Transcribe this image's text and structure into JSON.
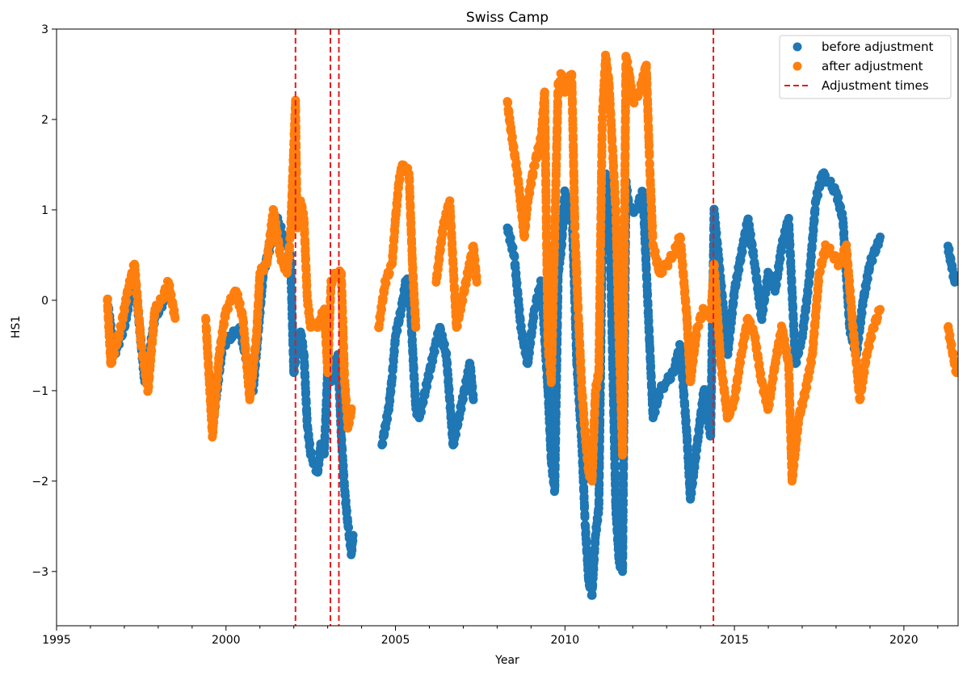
{
  "chart_data": {
    "type": "scatter",
    "title": "Swiss Camp",
    "xlabel": "Year",
    "ylabel": "HS1",
    "xlim": [
      1995,
      2021.6
    ],
    "ylim": [
      -3.6,
      3.0
    ],
    "xticks": [
      1995,
      2000,
      2005,
      2010,
      2015,
      2020
    ],
    "xtick_labels": [
      "1995",
      "2000",
      "2005",
      "2010",
      "2015",
      "2020"
    ],
    "yticks": [
      -3,
      -2,
      -1,
      0,
      1,
      2,
      3
    ],
    "ytick_labels": [
      "−3",
      "−2",
      "−1",
      "0",
      "1",
      "2",
      "3"
    ],
    "legend_position": "top-right",
    "grid": false,
    "series": [
      {
        "name": "before adjustment",
        "color": "#1f77b4",
        "marker": "circle",
        "points": [
          [
            1996.5,
            0.0
          ],
          [
            1996.7,
            -0.6
          ],
          [
            1997.0,
            -0.3
          ],
          [
            1997.3,
            0.3
          ],
          [
            1997.6,
            -0.9
          ],
          [
            1997.9,
            -0.2
          ],
          [
            1998.3,
            0.1
          ],
          [
            1999.6,
            -1.4
          ],
          [
            1999.9,
            -0.5
          ],
          [
            2000.4,
            -0.3
          ],
          [
            2000.8,
            -1.0
          ],
          [
            2001.1,
            0.3
          ],
          [
            2001.5,
            0.9
          ],
          [
            2001.9,
            0.5
          ],
          [
            2002.0,
            -0.8
          ],
          [
            2002.1,
            -0.5
          ],
          [
            2002.2,
            -0.35
          ],
          [
            2002.3,
            -0.6
          ],
          [
            2002.4,
            -1.4
          ],
          [
            2002.5,
            -1.7
          ],
          [
            2002.6,
            -1.8
          ],
          [
            2002.7,
            -1.9
          ],
          [
            2002.8,
            -1.6
          ],
          [
            2002.9,
            -1.7
          ],
          [
            2003.0,
            -0.75
          ],
          [
            2003.1,
            -0.9
          ],
          [
            2003.2,
            -0.7
          ],
          [
            2003.3,
            -0.6
          ],
          [
            2003.4,
            -1.5
          ],
          [
            2003.5,
            -2.1
          ],
          [
            2003.6,
            -2.5
          ],
          [
            2003.7,
            -2.8
          ],
          [
            2003.75,
            -2.6
          ],
          [
            2004.6,
            -1.6
          ],
          [
            2004.8,
            -1.2
          ],
          [
            2004.9,
            -0.85
          ],
          [
            2005.0,
            -0.4
          ],
          [
            2005.2,
            -0.05
          ],
          [
            2005.3,
            0.2
          ],
          [
            2005.4,
            0.2
          ],
          [
            2005.5,
            -0.5
          ],
          [
            2005.6,
            -1.2
          ],
          [
            2005.7,
            -1.3
          ],
          [
            2006.3,
            -0.3
          ],
          [
            2006.5,
            -0.6
          ],
          [
            2006.7,
            -1.6
          ],
          [
            2007.2,
            -0.7
          ],
          [
            2007.3,
            -1.1
          ],
          [
            2008.3,
            0.8
          ],
          [
            2008.5,
            0.5
          ],
          [
            2008.7,
            -0.3
          ],
          [
            2008.9,
            -0.7
          ],
          [
            2009.1,
            -0.1
          ],
          [
            2009.3,
            0.2
          ],
          [
            2009.5,
            -1.0
          ],
          [
            2009.6,
            -1.8
          ],
          [
            2009.7,
            -2.1
          ],
          [
            2009.8,
            0.3
          ],
          [
            2009.9,
            0.6
          ],
          [
            2010.0,
            1.2
          ],
          [
            2010.1,
            0.9
          ],
          [
            2010.2,
            1.1
          ],
          [
            2010.35,
            -0.7
          ],
          [
            2010.5,
            -1.6
          ],
          [
            2010.6,
            -2.5
          ],
          [
            2010.7,
            -3.1
          ],
          [
            2010.8,
            -3.25
          ],
          [
            2010.9,
            -2.6
          ],
          [
            2011.0,
            -2.3
          ],
          [
            2011.1,
            0.7
          ],
          [
            2011.2,
            1.4
          ],
          [
            2011.3,
            1.2
          ],
          [
            2011.5,
            -2.3
          ],
          [
            2011.6,
            -2.9
          ],
          [
            2011.7,
            -3.0
          ],
          [
            2011.8,
            1.3
          ],
          [
            2011.9,
            1.0
          ],
          [
            2012.1,
            1.0
          ],
          [
            2012.3,
            1.2
          ],
          [
            2012.5,
            -0.5
          ],
          [
            2012.6,
            -1.3
          ],
          [
            2012.8,
            -1.0
          ],
          [
            2013.0,
            -0.9
          ],
          [
            2013.2,
            -0.8
          ],
          [
            2013.4,
            -0.5
          ],
          [
            2013.6,
            -1.5
          ],
          [
            2013.7,
            -2.2
          ],
          [
            2013.9,
            -1.6
          ],
          [
            2014.1,
            -1.0
          ],
          [
            2014.3,
            -1.5
          ],
          [
            2014.4,
            1.0
          ],
          [
            2014.6,
            0.2
          ],
          [
            2014.8,
            -0.6
          ],
          [
            2015.0,
            0.1
          ],
          [
            2015.2,
            0.5
          ],
          [
            2015.4,
            0.9
          ],
          [
            2015.6,
            0.4
          ],
          [
            2015.8,
            -0.2
          ],
          [
            2016.0,
            0.3
          ],
          [
            2016.2,
            0.1
          ],
          [
            2016.4,
            0.6
          ],
          [
            2016.6,
            0.9
          ],
          [
            2016.8,
            -0.7
          ],
          [
            2017.0,
            -0.4
          ],
          [
            2017.2,
            0.2
          ],
          [
            2017.4,
            1.1
          ],
          [
            2017.6,
            1.4
          ],
          [
            2017.8,
            1.3
          ],
          [
            2018.0,
            1.2
          ],
          [
            2018.2,
            0.9
          ],
          [
            2018.4,
            -0.3
          ],
          [
            2018.6,
            -0.6
          ],
          [
            2018.8,
            0.0
          ],
          [
            2019.0,
            0.4
          ],
          [
            2019.2,
            0.6
          ],
          [
            2019.3,
            0.7
          ],
          [
            2021.3,
            0.6
          ],
          [
            2021.4,
            0.4
          ],
          [
            2021.5,
            0.2
          ]
        ]
      },
      {
        "name": "after adjustment",
        "color": "#ff7f0e",
        "marker": "circle",
        "points": [
          [
            1996.5,
            0.0
          ],
          [
            1996.6,
            -0.7
          ],
          [
            1996.9,
            -0.3
          ],
          [
            1997.1,
            0.1
          ],
          [
            1997.3,
            0.4
          ],
          [
            1997.5,
            -0.5
          ],
          [
            1997.7,
            -1.0
          ],
          [
            1997.9,
            -0.1
          ],
          [
            1998.1,
            0.0
          ],
          [
            1998.3,
            0.2
          ],
          [
            1998.5,
            -0.2
          ],
          [
            1999.4,
            -0.2
          ],
          [
            1999.6,
            -1.5
          ],
          [
            1999.8,
            -0.6
          ],
          [
            2000.0,
            -0.1
          ],
          [
            2000.3,
            0.1
          ],
          [
            2000.5,
            -0.2
          ],
          [
            2000.7,
            -1.1
          ],
          [
            2000.9,
            -0.4
          ],
          [
            2001.0,
            0.3
          ],
          [
            2001.2,
            0.4
          ],
          [
            2001.4,
            1.0
          ],
          [
            2001.6,
            0.5
          ],
          [
            2001.8,
            0.3
          ],
          [
            2001.9,
            0.7
          ],
          [
            2002.05,
            2.2
          ],
          [
            2002.1,
            0.8
          ],
          [
            2002.2,
            1.1
          ],
          [
            2002.3,
            0.9
          ],
          [
            2002.4,
            0.0
          ],
          [
            2002.5,
            -0.3
          ],
          [
            2002.7,
            -0.3
          ],
          [
            2002.9,
            -0.1
          ],
          [
            2003.0,
            -0.8
          ],
          [
            2003.1,
            0.2
          ],
          [
            2003.25,
            0.3
          ],
          [
            2003.4,
            0.3
          ],
          [
            2003.5,
            -0.9
          ],
          [
            2003.6,
            -1.4
          ],
          [
            2003.7,
            -1.2
          ],
          [
            2004.5,
            -0.3
          ],
          [
            2004.7,
            0.2
          ],
          [
            2004.9,
            0.4
          ],
          [
            2005.0,
            0.9
          ],
          [
            2005.1,
            1.3
          ],
          [
            2005.2,
            1.5
          ],
          [
            2005.4,
            1.4
          ],
          [
            2005.5,
            0.4
          ],
          [
            2005.6,
            -0.3
          ],
          [
            2006.2,
            0.2
          ],
          [
            2006.4,
            0.8
          ],
          [
            2006.6,
            1.1
          ],
          [
            2006.8,
            -0.3
          ],
          [
            2007.3,
            0.6
          ],
          [
            2007.4,
            0.2
          ],
          [
            2008.3,
            2.2
          ],
          [
            2008.4,
            1.9
          ],
          [
            2008.6,
            1.4
          ],
          [
            2008.8,
            0.7
          ],
          [
            2008.9,
            1.1
          ],
          [
            2009.1,
            1.5
          ],
          [
            2009.3,
            1.8
          ],
          [
            2009.4,
            2.3
          ],
          [
            2009.5,
            -0.5
          ],
          [
            2009.6,
            -0.9
          ],
          [
            2009.8,
            2.4
          ],
          [
            2009.9,
            2.5
          ],
          [
            2010.0,
            2.3
          ],
          [
            2010.2,
            2.5
          ],
          [
            2010.3,
            0.7
          ],
          [
            2010.4,
            -0.2
          ],
          [
            2010.5,
            -1.0
          ],
          [
            2010.6,
            -1.5
          ],
          [
            2010.7,
            -1.9
          ],
          [
            2010.8,
            -2.0
          ],
          [
            2010.9,
            -1.0
          ],
          [
            2011.0,
            -0.8
          ],
          [
            2011.1,
            2.0
          ],
          [
            2011.2,
            2.7
          ],
          [
            2011.3,
            2.4
          ],
          [
            2011.5,
            1.0
          ],
          [
            2011.6,
            -0.5
          ],
          [
            2011.7,
            -1.7
          ],
          [
            2011.8,
            2.7
          ],
          [
            2011.9,
            2.5
          ],
          [
            2012.0,
            2.2
          ],
          [
            2012.2,
            2.3
          ],
          [
            2012.4,
            2.6
          ],
          [
            2012.5,
            1.5
          ],
          [
            2012.6,
            0.6
          ],
          [
            2012.8,
            0.3
          ],
          [
            2013.0,
            0.4
          ],
          [
            2013.2,
            0.5
          ],
          [
            2013.4,
            0.7
          ],
          [
            2013.6,
            -0.2
          ],
          [
            2013.7,
            -0.9
          ],
          [
            2013.9,
            -0.3
          ],
          [
            2014.1,
            -0.1
          ],
          [
            2014.3,
            -0.2
          ],
          [
            2014.4,
            0.4
          ],
          [
            2014.6,
            -0.7
          ],
          [
            2014.8,
            -1.3
          ],
          [
            2015.0,
            -1.1
          ],
          [
            2015.2,
            -0.6
          ],
          [
            2015.4,
            -0.2
          ],
          [
            2015.6,
            -0.4
          ],
          [
            2015.8,
            -0.9
          ],
          [
            2016.0,
            -1.2
          ],
          [
            2016.2,
            -0.7
          ],
          [
            2016.4,
            -0.3
          ],
          [
            2016.6,
            -0.7
          ],
          [
            2016.7,
            -2.0
          ],
          [
            2016.9,
            -1.3
          ],
          [
            2017.1,
            -1.0
          ],
          [
            2017.3,
            -0.6
          ],
          [
            2017.5,
            0.3
          ],
          [
            2017.7,
            0.6
          ],
          [
            2017.9,
            0.5
          ],
          [
            2018.1,
            0.4
          ],
          [
            2018.3,
            0.6
          ],
          [
            2018.5,
            -0.3
          ],
          [
            2018.7,
            -1.1
          ],
          [
            2018.9,
            -0.6
          ],
          [
            2019.1,
            -0.3
          ],
          [
            2019.3,
            -0.1
          ],
          [
            2021.3,
            -0.3
          ],
          [
            2021.45,
            -0.6
          ],
          [
            2021.55,
            -0.8
          ]
        ]
      }
    ],
    "adjustment_times": [
      2002.05,
      2003.08,
      2003.33,
      2014.38
    ],
    "adjustment_color": "#e31a1c",
    "legend": [
      {
        "label": "before adjustment",
        "kind": "dot",
        "color": "#1f77b4"
      },
      {
        "label": "after adjustment",
        "kind": "dot",
        "color": "#ff7f0e"
      },
      {
        "label": "Adjustment times",
        "kind": "dashed-line",
        "color": "#e31a1c"
      }
    ]
  }
}
